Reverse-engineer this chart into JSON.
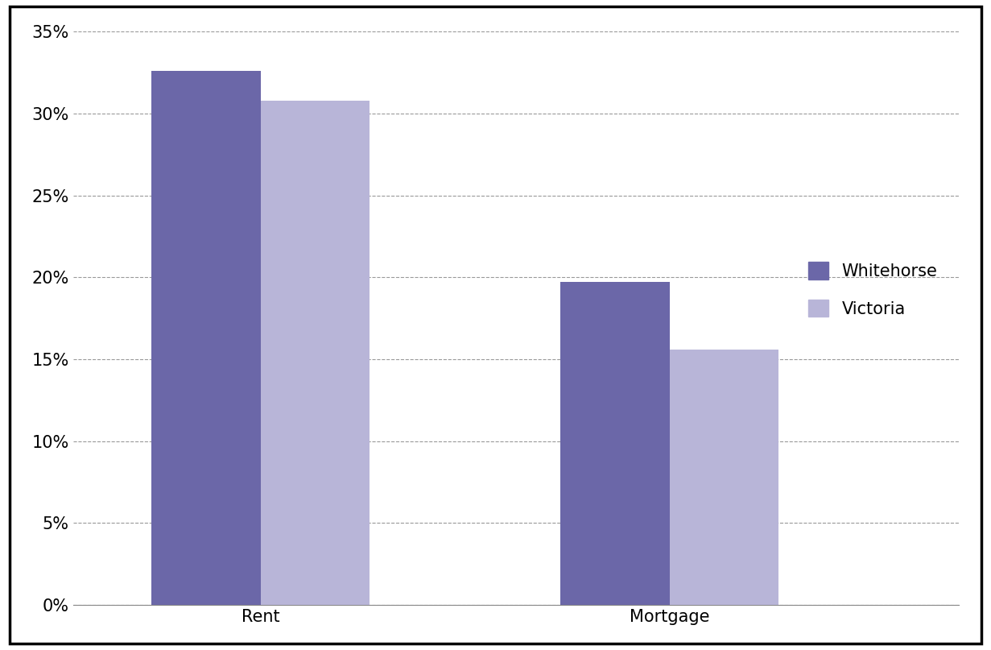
{
  "categories": [
    "Rent",
    "Mortgage"
  ],
  "whitehorse_values": [
    0.326,
    0.197
  ],
  "victoria_values": [
    0.308,
    0.156
  ],
  "whitehorse_color": "#6b67a8",
  "victoria_color": "#b8b5d8",
  "ylim": [
    0,
    0.35
  ],
  "yticks": [
    0.0,
    0.05,
    0.1,
    0.15,
    0.2,
    0.25,
    0.3,
    0.35
  ],
  "ytick_labels": [
    "0%",
    "5%",
    "10%",
    "15%",
    "20%",
    "25%",
    "30%",
    "35%"
  ],
  "legend_labels": [
    "Whitehorse",
    "Victoria"
  ],
  "bar_width": 0.32,
  "group_positions": [
    0.55,
    1.75
  ],
  "xlim": [
    0.0,
    2.6
  ],
  "background_color": "#ffffff",
  "border_color": "#000000",
  "grid_color": "#999999",
  "tick_label_fontsize": 15,
  "legend_fontsize": 15
}
